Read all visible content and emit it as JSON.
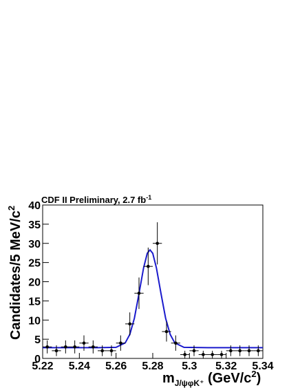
{
  "chart_data": {
    "type": "scatter",
    "title": "CDF II Preliminary, 2.7 fb",
    "title_sup": "-1",
    "y_label": "Candidates/5 MeV/c",
    "y_label_sup": "2",
    "x_label_main": "m",
    "x_label_sub": "J/ψφK⁺",
    "x_label_unit": " (GeV/c",
    "x_label_unit_sup": "2",
    "x_label_close": ")",
    "x": [
      5.2225,
      5.2275,
      5.2325,
      5.2375,
      5.2425,
      5.2475,
      5.2525,
      5.2575,
      5.2625,
      5.2675,
      5.2725,
      5.2775,
      5.2825,
      5.2875,
      5.2925,
      5.2975,
      5.3025,
      5.3075,
      5.3125,
      5.3175,
      5.3225,
      5.3275,
      5.3325,
      5.3375
    ],
    "values": [
      3,
      2,
      3,
      3,
      4,
      3,
      2,
      2,
      4,
      9,
      17,
      24,
      30,
      7,
      4,
      1,
      2,
      1,
      1,
      1,
      2,
      2,
      2,
      2
    ],
    "errors": [
      1.7,
      1.4,
      1.7,
      1.7,
      2,
      1.7,
      1.4,
      1.4,
      2,
      3,
      4.1,
      4.9,
      5.5,
      2.6,
      2,
      1,
      1.4,
      1,
      1,
      1,
      1.4,
      1.4,
      1.4,
      1.4
    ],
    "x_error": 0.0025,
    "point_color": "#000000",
    "fit_x": [
      5.22,
      5.25,
      5.26,
      5.265,
      5.2675,
      5.27,
      5.2725,
      5.275,
      5.277,
      5.2785,
      5.28,
      5.282,
      5.2845,
      5.287,
      5.2895,
      5.292,
      5.297,
      5.31,
      5.34
    ],
    "fit_y": [
      2.8,
      2.8,
      2.89,
      4.05,
      6.25,
      10.5,
      16.9,
      23.6,
      27.4,
      28.3,
      27.4,
      23.6,
      16.9,
      10.5,
      6.25,
      4.05,
      2.89,
      2.8,
      2.8
    ],
    "fit_color": "#1a1acc",
    "xlim": [
      5.22,
      5.34
    ],
    "ylim": [
      0,
      40
    ],
    "xticks": [
      5.22,
      5.24,
      5.26,
      5.28,
      5.3,
      5.32,
      5.34
    ],
    "yticks": [
      0,
      5,
      10,
      15,
      20,
      25,
      30,
      35,
      40
    ]
  }
}
